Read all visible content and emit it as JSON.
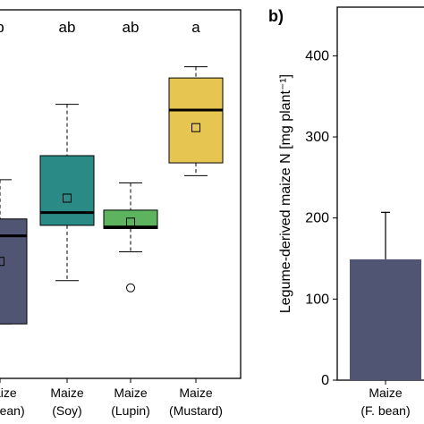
{
  "chart_data": [
    {
      "type": "box",
      "panel_label": "",
      "categories": [
        {
          "line1": "Maize",
          "line2": "(F. bean)",
          "color": "#4f5573"
        },
        {
          "line1": "Maize",
          "line2": "(Soy)",
          "color": "#2a8a86"
        },
        {
          "line1": "Maize",
          "line2": "(Lupin)",
          "color": "#5db35e"
        },
        {
          "line1": "Maize",
          "line2": "(Mustard)",
          "color": "#e6c650"
        }
      ],
      "significance": [
        "b",
        "ab",
        "ab",
        "a"
      ],
      "boxes": [
        {
          "whisker_low": 108,
          "q1": 108,
          "median": 218,
          "q3": 239,
          "whisker_high": 288,
          "mean": 186,
          "outliers": []
        },
        {
          "whisker_low": 162,
          "q1": 231,
          "median": 247,
          "q3": 318,
          "whisker_high": 382,
          "mean": 265,
          "outliers": []
        },
        {
          "whisker_low": 198,
          "q1": 227,
          "median": 229,
          "q3": 250,
          "whisker_high": 284,
          "mean": 235,
          "outliers": [
            153
          ]
        },
        {
          "whisker_low": 293,
          "q1": 309,
          "median": 375,
          "q3": 415,
          "whisker_high": 429,
          "mean": 353,
          "outliers": []
        }
      ],
      "ylim": [
        40,
        500
      ]
    },
    {
      "type": "bar",
      "panel_label": "b)",
      "ylabel": "Legume-derived maize N [mg plant⁻¹]",
      "categories": [
        {
          "line1": "Maize",
          "line2": "(F. bean)",
          "color": "#4f5573"
        }
      ],
      "values": [
        149
      ],
      "errors": [
        58
      ],
      "ylim": [
        0,
        460
      ],
      "yticks": [
        "0",
        "100",
        "200",
        "300",
        "400"
      ]
    }
  ]
}
